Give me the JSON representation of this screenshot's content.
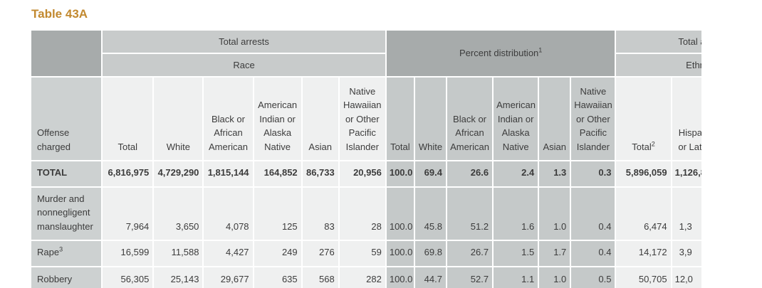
{
  "page": {
    "title": "Table 43A",
    "accent_color": "#c2892f"
  },
  "table": {
    "bands": {
      "total_arrests": "Total arrests",
      "race": "Race",
      "percent_distribution": "Percent distribution",
      "percent_distribution_sup": "1",
      "total_arrests_right": "Total arrests",
      "ethnicity": "Ethnicity"
    },
    "columns": {
      "offense": "Offense charged",
      "race": {
        "total": "Total",
        "white": "White",
        "black": "Black or African American",
        "american_indian": "American Indian or Alaska Native",
        "asian": "Asian",
        "native_hawaiian": "Native Hawaiian or Other Pacific Islander"
      },
      "percent": {
        "total": "Total",
        "white": "White",
        "black": "Black or African American",
        "american_indian": "American Indian or Alaska Native",
        "asian": "Asian",
        "native_hawaiian": "Native Hawaiian or Other Pacific Islander"
      },
      "ethnicity": {
        "total": "Total",
        "total_sup": "2",
        "hispanic": "Hispanic or Latino"
      }
    },
    "rows": [
      {
        "offense": "TOTAL",
        "race": [
          "6,816,975",
          "4,729,290",
          "1,815,144",
          "164,852",
          "86,733",
          "20,956"
        ],
        "percent": [
          "100.0",
          "69.4",
          "26.6",
          "2.4",
          "1.3",
          "0.3"
        ],
        "ethnicity": [
          "5,896,059",
          "1,126,8"
        ]
      },
      {
        "offense": "Murder and nonnegligent manslaughter",
        "race": [
          "7,964",
          "3,650",
          "4,078",
          "125",
          "83",
          "28"
        ],
        "percent": [
          "100.0",
          "45.8",
          "51.2",
          "1.6",
          "1.0",
          "0.4"
        ],
        "ethnicity": [
          "6,474",
          "1,3"
        ]
      },
      {
        "offense": "Rape",
        "offense_sup": "3",
        "race": [
          "16,599",
          "11,588",
          "4,427",
          "249",
          "276",
          "59"
        ],
        "percent": [
          "100.0",
          "69.8",
          "26.7",
          "1.5",
          "1.7",
          "0.4"
        ],
        "ethnicity": [
          "14,172",
          "3,9"
        ]
      },
      {
        "offense": "Robbery",
        "race": [
          "56,305",
          "25,143",
          "29,677",
          "635",
          "568",
          "282"
        ],
        "percent": [
          "100.0",
          "44.7",
          "52.7",
          "1.1",
          "1.0",
          "0.5"
        ],
        "ethnicity": [
          "50,705",
          "12,0"
        ]
      }
    ]
  }
}
